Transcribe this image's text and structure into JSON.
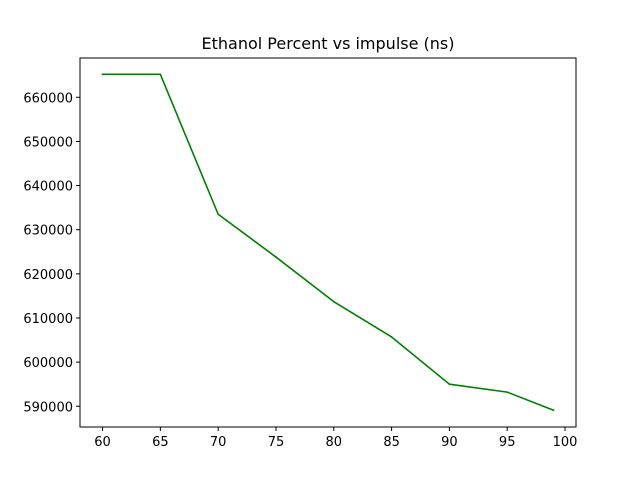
{
  "chart_data": {
    "type": "line",
    "title": "Ethanol Percent vs impulse (ns)",
    "xlabel": "",
    "ylabel": "",
    "x": [
      60,
      65,
      70,
      75,
      80,
      85,
      90,
      95,
      99
    ],
    "series": [
      {
        "values": [
          665200,
          665200,
          633500,
          623800,
          613700,
          605700,
          595000,
          593200,
          589100
        ],
        "color": "#008000"
      }
    ],
    "xlim": [
      58.05,
      100.95
    ],
    "ylim": [
      585300,
      668900
    ],
    "xticks": [
      60,
      65,
      70,
      75,
      80,
      85,
      90,
      95,
      100
    ],
    "yticks": [
      590000,
      600000,
      610000,
      620000,
      630000,
      640000,
      650000,
      660000
    ],
    "grid": false,
    "legend": "none"
  }
}
